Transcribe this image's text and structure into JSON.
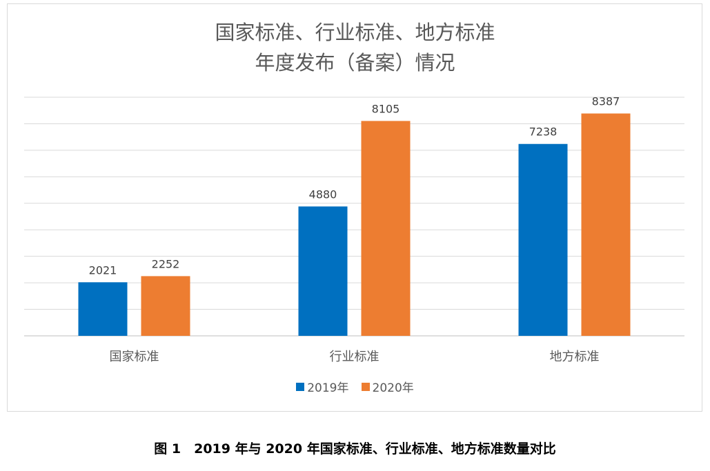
{
  "chart_data": {
    "type": "bar",
    "title_lines": [
      "国家标准、行业标准、地方标准",
      "年度发布（备案）情况"
    ],
    "categories": [
      "国家标准",
      "行业标准",
      "地方标准"
    ],
    "series": [
      {
        "name": "2019年",
        "values": [
          2021,
          4880,
          7238
        ],
        "color": "#0070C0"
      },
      {
        "name": "2020年",
        "values": [
          2252,
          8105,
          8387
        ],
        "color": "#ED7D31"
      }
    ],
    "ylim": [
      0,
      9000
    ],
    "ytick_step": 1000,
    "grid": true,
    "legend": "bottom",
    "xlabel": "",
    "ylabel": ""
  },
  "caption": "图 1　2019 年与 2020 年国家标准、行业标准、地方标准数量对比"
}
